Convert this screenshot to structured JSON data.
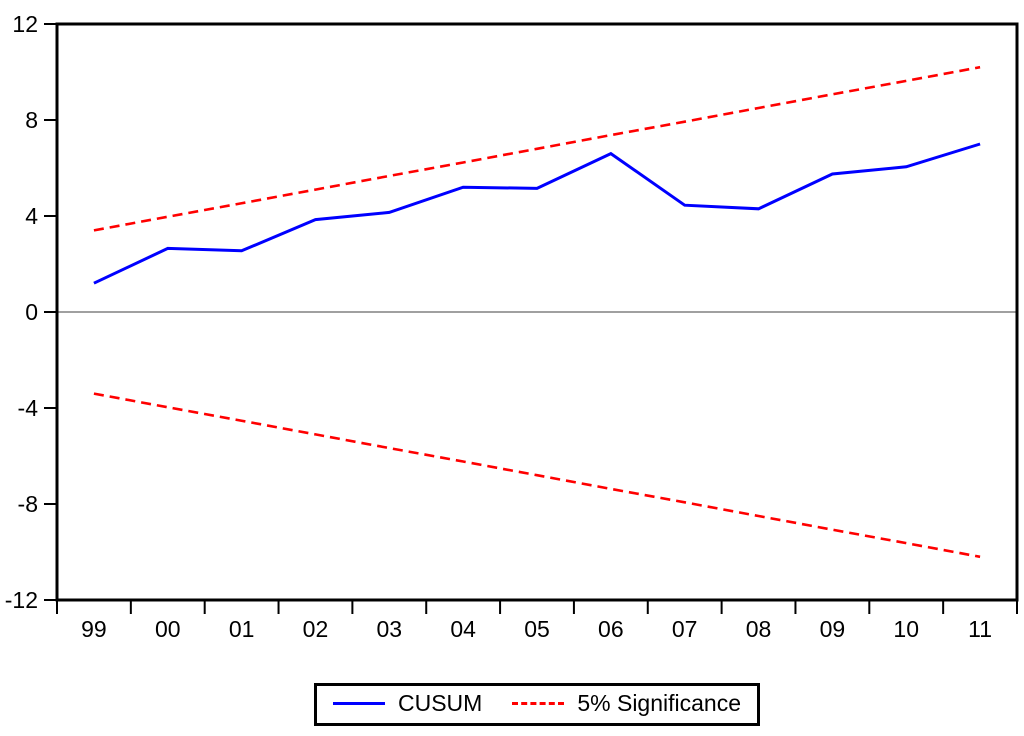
{
  "chart_data": {
    "type": "line",
    "title": "",
    "xlabel": "",
    "ylabel": "",
    "x_categories": [
      "99",
      "00",
      "01",
      "02",
      "03",
      "04",
      "05",
      "06",
      "07",
      "08",
      "09",
      "10",
      "11"
    ],
    "ylim": [
      -12,
      12
    ],
    "y_ticks": [
      12,
      8,
      4,
      0,
      -4,
      -8,
      -12
    ],
    "y_tick_labels": [
      "12",
      "8",
      "4",
      "0",
      "-4",
      "-8",
      "-12"
    ],
    "grid": false,
    "zero_line": true,
    "axis_color": "#000000",
    "zero_line_color": "#808080",
    "series": [
      {
        "name": "CUSUM",
        "color": "#0000ff",
        "style": "solid",
        "width": 3,
        "values": [
          1.2,
          2.65,
          2.55,
          3.85,
          4.15,
          5.2,
          5.15,
          6.6,
          4.45,
          4.3,
          5.75,
          6.05,
          7.0
        ]
      },
      {
        "name": "5% Significance (upper bound)",
        "color": "#ff0000",
        "style": "dashed",
        "width": 2.6,
        "values": [
          3.4,
          3.97,
          4.53,
          5.1,
          5.67,
          6.23,
          6.8,
          7.37,
          7.93,
          8.5,
          9.07,
          9.63,
          10.2
        ]
      },
      {
        "name": "5% Significance (lower bound)",
        "color": "#ff0000",
        "style": "dashed",
        "width": 2.6,
        "values": [
          -3.4,
          -3.97,
          -4.53,
          -5.1,
          -5.67,
          -6.23,
          -6.8,
          -7.37,
          -7.93,
          -8.5,
          -9.07,
          -9.63,
          -10.2
        ]
      }
    ],
    "legend": {
      "position": "bottom-center",
      "entries": [
        {
          "label": "CUSUM",
          "color": "#0000ff",
          "style": "solid"
        },
        {
          "label": "5% Significance",
          "color": "#ff0000",
          "style": "dashed"
        }
      ]
    }
  }
}
